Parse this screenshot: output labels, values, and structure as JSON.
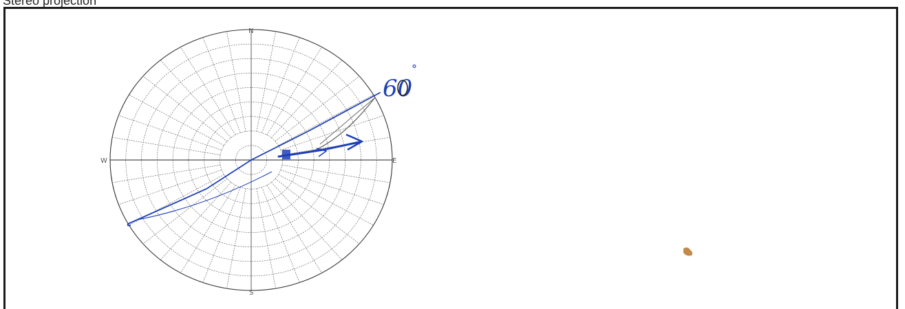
{
  "page": {
    "title": "Stereo projection"
  },
  "stereonet": {
    "directions": {
      "north": "N",
      "south": "S",
      "east": "E",
      "west": "W"
    },
    "ring_count": 9,
    "spoke_step_degrees": 10
  },
  "annotations": {
    "handwritten_angle": "60",
    "degree_mark": "°",
    "ink_color": "#1d3fb8",
    "pencil_color": "#6a6a6a"
  },
  "marks": {
    "stain_color": "#c48a4a"
  }
}
